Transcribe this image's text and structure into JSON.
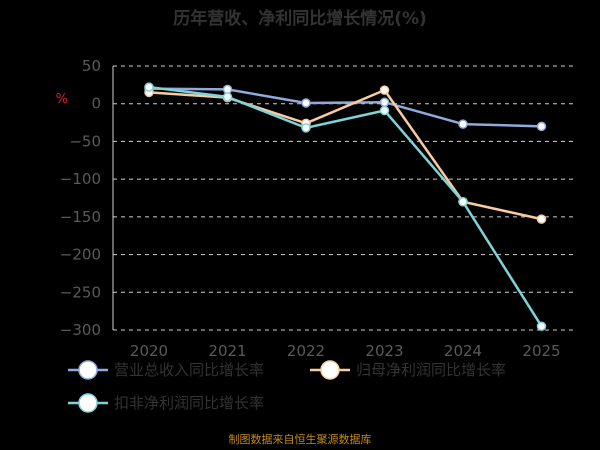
{
  "title": "历年营收、净利同比增长情况(%)",
  "unit_label": "%",
  "source": "制图数据来自恒生聚源数据库",
  "colors": {
    "background": "#000000",
    "title": "#333333",
    "tick": "#5a5a5a",
    "grid": "#cfcfcf",
    "source": "#c58a12",
    "unit": "#e02020"
  },
  "chart_data": {
    "type": "line",
    "title": "历年营收、净利同比增长情况(%)",
    "x": [
      "2020",
      "2021",
      "2022",
      "2023",
      "2024",
      "2025"
    ],
    "ylim": [
      -300,
      50
    ],
    "yticks": [
      50,
      0,
      -50,
      -100,
      -150,
      -200,
      -250,
      -300
    ],
    "grid": true,
    "legend_position": "bottom-left",
    "series": [
      {
        "name": "营业总收入同比增长率",
        "color": "#8faadc",
        "values": [
          20,
          19,
          1,
          2,
          -27,
          -30
        ]
      },
      {
        "name": "归母净利润同比增长率",
        "color": "#f8cba0",
        "values": [
          15,
          8,
          -26,
          18,
          -130,
          -153
        ]
      },
      {
        "name": "扣非净利润同比增长率",
        "color": "#7fd3d8",
        "values": [
          22,
          9,
          -32,
          -9,
          -130,
          -295
        ]
      }
    ]
  }
}
